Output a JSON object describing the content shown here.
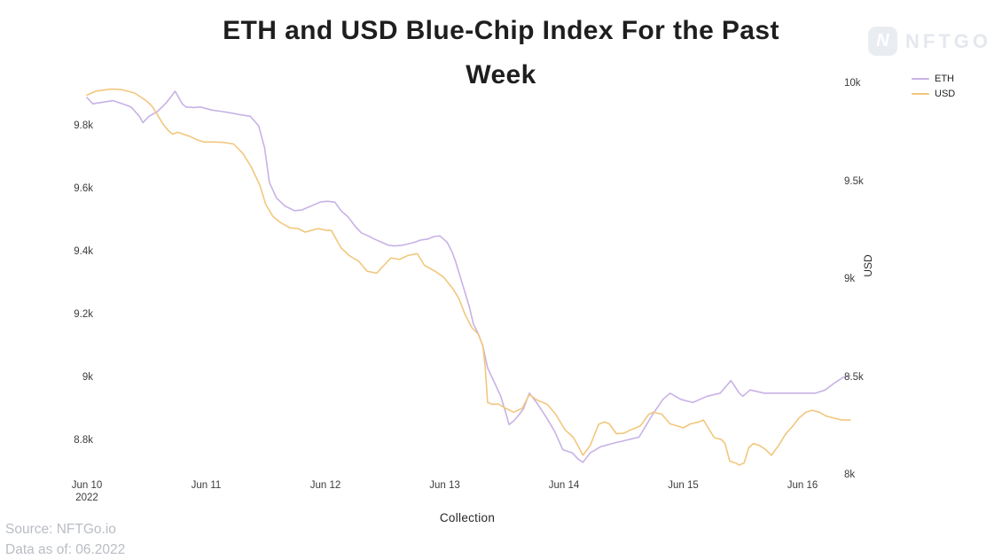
{
  "title": {
    "line1": "ETH and USD Blue-Chip Index For the Past",
    "line2": "Week"
  },
  "watermark": {
    "icon_letter": "N",
    "brand": "NFTGO"
  },
  "footer": {
    "source": "Source: NFTGo.io",
    "data_as_of": "Data as of: 06.2022"
  },
  "chart_data": {
    "type": "line",
    "title": "ETH and USD Blue-Chip Index For the Past Week",
    "xlabel": "Collection",
    "grid": false,
    "legend_position": "top-right",
    "x_unit": "days since Jun 10, 2022",
    "x_ticks": [
      {
        "day": 0,
        "label": "Jun 10",
        "sublabel": "2022"
      },
      {
        "day": 1,
        "label": "Jun 11"
      },
      {
        "day": 2,
        "label": "Jun 12"
      },
      {
        "day": 3,
        "label": "Jun 13"
      },
      {
        "day": 4,
        "label": "Jun 14"
      },
      {
        "day": 5,
        "label": "Jun 15"
      },
      {
        "day": 6,
        "label": "Jun 16"
      }
    ],
    "left_axis": {
      "name": "ETH",
      "ylim": [
        8650,
        9950
      ],
      "ticks": [
        {
          "value": 9800,
          "label": "9.8k"
        },
        {
          "value": 9600,
          "label": "9.6k"
        },
        {
          "value": 9400,
          "label": "9.4k"
        },
        {
          "value": 9200,
          "label": "9.2k"
        },
        {
          "value": 9000,
          "label": "9k"
        },
        {
          "value": 8800,
          "label": "8.8k"
        }
      ]
    },
    "right_axis": {
      "name": "USD",
      "ylabel": "USD",
      "ylim": [
        8000,
        10000
      ],
      "ticks": [
        {
          "value": 10000,
          "label": "10k"
        },
        {
          "value": 9500,
          "label": "9.5k"
        },
        {
          "value": 9000,
          "label": "9k"
        },
        {
          "value": 8500,
          "label": "8.5k"
        },
        {
          "value": 8000,
          "label": "8k"
        }
      ]
    },
    "series": [
      {
        "name": "ETH",
        "axis": "left",
        "color": "#c8b2e6",
        "points": [
          [
            0.0,
            9890
          ],
          [
            0.05,
            9870
          ],
          [
            0.13,
            9875
          ],
          [
            0.22,
            9880
          ],
          [
            0.3,
            9870
          ],
          [
            0.37,
            9860
          ],
          [
            0.44,
            9830
          ],
          [
            0.47,
            9810
          ],
          [
            0.52,
            9830
          ],
          [
            0.59,
            9845
          ],
          [
            0.67,
            9875
          ],
          [
            0.74,
            9910
          ],
          [
            0.8,
            9870
          ],
          [
            0.83,
            9860
          ],
          [
            0.9,
            9858
          ],
          [
            0.95,
            9860
          ],
          [
            1.05,
            9850
          ],
          [
            1.14,
            9845
          ],
          [
            1.22,
            9840
          ],
          [
            1.29,
            9835
          ],
          [
            1.37,
            9830
          ],
          [
            1.44,
            9800
          ],
          [
            1.49,
            9730
          ],
          [
            1.53,
            9620
          ],
          [
            1.59,
            9570
          ],
          [
            1.66,
            9545
          ],
          [
            1.74,
            9530
          ],
          [
            1.8,
            9532
          ],
          [
            1.85,
            9540
          ],
          [
            1.91,
            9550
          ],
          [
            1.96,
            9558
          ],
          [
            2.02,
            9560
          ],
          [
            2.08,
            9557
          ],
          [
            2.13,
            9530
          ],
          [
            2.19,
            9510
          ],
          [
            2.25,
            9480
          ],
          [
            2.3,
            9460
          ],
          [
            2.36,
            9450
          ],
          [
            2.41,
            9440
          ],
          [
            2.47,
            9430
          ],
          [
            2.53,
            9420
          ],
          [
            2.58,
            9418
          ],
          [
            2.64,
            9420
          ],
          [
            2.7,
            9425
          ],
          [
            2.75,
            9430
          ],
          [
            2.8,
            9437
          ],
          [
            2.86,
            9440
          ],
          [
            2.91,
            9448
          ],
          [
            2.96,
            9450
          ],
          [
            3.02,
            9430
          ],
          [
            3.06,
            9400
          ],
          [
            3.09,
            9370
          ],
          [
            3.13,
            9320
          ],
          [
            3.17,
            9270
          ],
          [
            3.21,
            9220
          ],
          [
            3.24,
            9170
          ],
          [
            3.28,
            9140
          ],
          [
            3.32,
            9100
          ],
          [
            3.36,
            9030
          ],
          [
            3.41,
            8990
          ],
          [
            3.47,
            8940
          ],
          [
            3.51,
            8890
          ],
          [
            3.54,
            8850
          ],
          [
            3.58,
            8862
          ],
          [
            3.62,
            8880
          ],
          [
            3.66,
            8900
          ],
          [
            3.71,
            8950
          ],
          [
            3.77,
            8920
          ],
          [
            3.84,
            8880
          ],
          [
            3.92,
            8830
          ],
          [
            3.99,
            8770
          ],
          [
            4.07,
            8760
          ],
          [
            4.12,
            8740
          ],
          [
            4.16,
            8730
          ],
          [
            4.22,
            8760
          ],
          [
            4.31,
            8780
          ],
          [
            4.41,
            8790
          ],
          [
            4.52,
            8800
          ],
          [
            4.63,
            8810
          ],
          [
            4.74,
            8880
          ],
          [
            4.83,
            8930
          ],
          [
            4.89,
            8950
          ],
          [
            4.98,
            8930
          ],
          [
            5.08,
            8920
          ],
          [
            5.14,
            8930
          ],
          [
            5.2,
            8940
          ],
          [
            5.31,
            8950
          ],
          [
            5.4,
            8990
          ],
          [
            5.47,
            8950
          ],
          [
            5.5,
            8940
          ],
          [
            5.56,
            8960
          ],
          [
            5.68,
            8950
          ],
          [
            5.83,
            8950
          ],
          [
            5.98,
            8950
          ],
          [
            6.11,
            8950
          ],
          [
            6.19,
            8960
          ],
          [
            6.26,
            8980
          ],
          [
            6.34,
            9000
          ],
          [
            6.4,
            9005
          ]
        ]
      },
      {
        "name": "USD",
        "axis": "right",
        "color": "#f1c77e",
        "points": [
          [
            0.0,
            9940
          ],
          [
            0.08,
            9960
          ],
          [
            0.2,
            9970
          ],
          [
            0.29,
            9968
          ],
          [
            0.4,
            9950
          ],
          [
            0.5,
            9910
          ],
          [
            0.55,
            9880
          ],
          [
            0.59,
            9840
          ],
          [
            0.64,
            9790
          ],
          [
            0.68,
            9760
          ],
          [
            0.72,
            9740
          ],
          [
            0.76,
            9750
          ],
          [
            0.81,
            9740
          ],
          [
            0.86,
            9730
          ],
          [
            0.92,
            9712
          ],
          [
            0.98,
            9700
          ],
          [
            1.06,
            9700
          ],
          [
            1.14,
            9698
          ],
          [
            1.23,
            9690
          ],
          [
            1.31,
            9640
          ],
          [
            1.38,
            9570
          ],
          [
            1.45,
            9480
          ],
          [
            1.5,
            9380
          ],
          [
            1.56,
            9320
          ],
          [
            1.62,
            9290
          ],
          [
            1.7,
            9262
          ],
          [
            1.77,
            9258
          ],
          [
            1.83,
            9240
          ],
          [
            1.89,
            9250
          ],
          [
            1.94,
            9258
          ],
          [
            2.0,
            9250
          ],
          [
            2.05,
            9248
          ],
          [
            2.13,
            9160
          ],
          [
            2.2,
            9120
          ],
          [
            2.28,
            9090
          ],
          [
            2.35,
            9040
          ],
          [
            2.43,
            9030
          ],
          [
            2.49,
            9070
          ],
          [
            2.55,
            9108
          ],
          [
            2.62,
            9100
          ],
          [
            2.69,
            9120
          ],
          [
            2.77,
            9130
          ],
          [
            2.83,
            9070
          ],
          [
            2.92,
            9040
          ],
          [
            2.99,
            9010
          ],
          [
            3.07,
            8950
          ],
          [
            3.12,
            8900
          ],
          [
            3.17,
            8820
          ],
          [
            3.23,
            8750
          ],
          [
            3.28,
            8720
          ],
          [
            3.32,
            8660
          ],
          [
            3.34,
            8550
          ],
          [
            3.36,
            8370
          ],
          [
            3.4,
            8360
          ],
          [
            3.45,
            8362
          ],
          [
            3.51,
            8340
          ],
          [
            3.58,
            8320
          ],
          [
            3.65,
            8340
          ],
          [
            3.71,
            8410
          ],
          [
            3.78,
            8380
          ],
          [
            3.86,
            8360
          ],
          [
            3.93,
            8310
          ],
          [
            4.01,
            8230
          ],
          [
            4.08,
            8190
          ],
          [
            4.16,
            8100
          ],
          [
            4.22,
            8150
          ],
          [
            4.29,
            8258
          ],
          [
            4.34,
            8270
          ],
          [
            4.38,
            8260
          ],
          [
            4.44,
            8210
          ],
          [
            4.5,
            8212
          ],
          [
            4.56,
            8230
          ],
          [
            4.64,
            8250
          ],
          [
            4.71,
            8308
          ],
          [
            4.75,
            8320
          ],
          [
            4.82,
            8310
          ],
          [
            4.89,
            8260
          ],
          [
            4.95,
            8250
          ],
          [
            5.0,
            8240
          ],
          [
            5.06,
            8260
          ],
          [
            5.13,
            8270
          ],
          [
            5.17,
            8280
          ],
          [
            5.21,
            8240
          ],
          [
            5.26,
            8190
          ],
          [
            5.32,
            8180
          ],
          [
            5.35,
            8160
          ],
          [
            5.39,
            8070
          ],
          [
            5.44,
            8060
          ],
          [
            5.47,
            8050
          ],
          [
            5.51,
            8060
          ],
          [
            5.55,
            8140
          ],
          [
            5.59,
            8160
          ],
          [
            5.64,
            8150
          ],
          [
            5.69,
            8130
          ],
          [
            5.74,
            8100
          ],
          [
            5.8,
            8150
          ],
          [
            5.86,
            8210
          ],
          [
            5.92,
            8250
          ],
          [
            5.97,
            8290
          ],
          [
            6.03,
            8320
          ],
          [
            6.08,
            8330
          ],
          [
            6.14,
            8320
          ],
          [
            6.2,
            8300
          ],
          [
            6.26,
            8290
          ],
          [
            6.33,
            8280
          ],
          [
            6.4,
            8280
          ]
        ]
      }
    ]
  }
}
